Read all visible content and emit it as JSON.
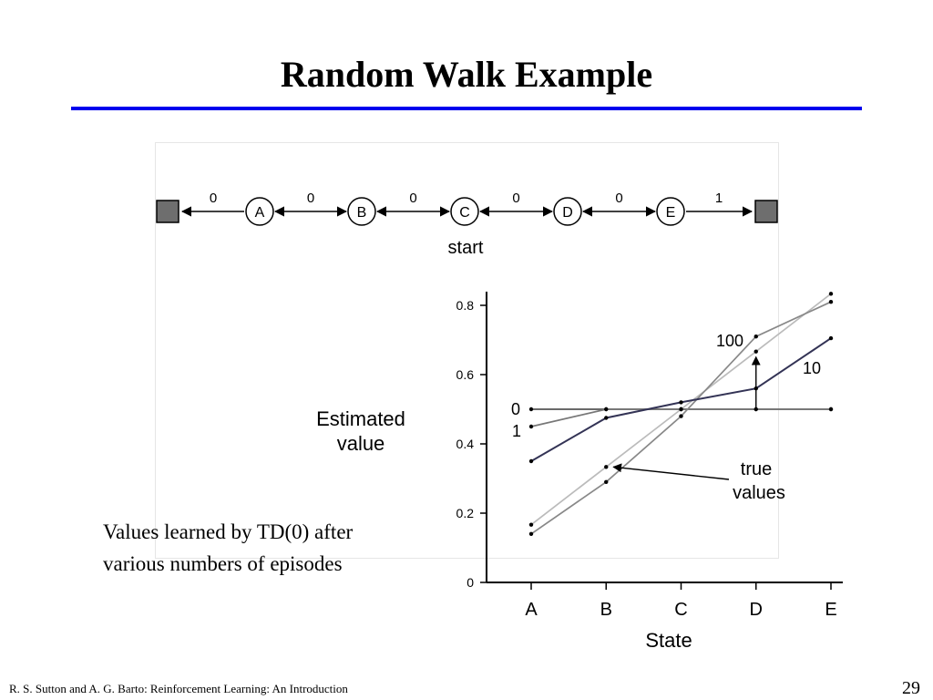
{
  "slide": {
    "title": "Random Walk Example",
    "caption_line1": "Values learned by TD(0) after",
    "caption_line2": "various numbers of episodes",
    "footer": "R. S. Sutton and A. G. Barto: Reinforcement Learning: An Introduction",
    "page_number": "29"
  },
  "random_walk": {
    "states": [
      "A",
      "B",
      "C",
      "D",
      "E"
    ],
    "rewards": [
      "0",
      "0",
      "0",
      "0",
      "0",
      "1"
    ],
    "start_label": "start"
  },
  "chart_data": {
    "type": "line",
    "xlabel": "State",
    "ylabel_line1": "Estimated",
    "ylabel_line2": "value",
    "categories": [
      "A",
      "B",
      "C",
      "D",
      "E"
    ],
    "ylim": [
      0,
      0.85
    ],
    "yticks": [
      0,
      0.2,
      0.4,
      0.6,
      0.8
    ],
    "ytick_labels": [
      "0",
      "0.2",
      "0.4",
      "0.6",
      "0.8"
    ],
    "series": [
      {
        "name": "0",
        "values": [
          0.5,
          0.5,
          0.5,
          0.5,
          0.5
        ],
        "color": "#555555"
      },
      {
        "name": "1",
        "values": [
          0.45,
          0.5,
          0.5,
          0.5,
          0.5
        ],
        "color": "#777777"
      },
      {
        "name": "10",
        "values": [
          0.35,
          0.475,
          0.52,
          0.56,
          0.705
        ],
        "color": "#333355"
      },
      {
        "name": "100",
        "values": [
          0.14,
          0.29,
          0.48,
          0.71,
          0.81
        ],
        "color": "#888888"
      },
      {
        "name": "true values",
        "values": [
          0.1667,
          0.3333,
          0.5,
          0.6667,
          0.8333
        ],
        "color": "#bbbbbb"
      }
    ],
    "annotations": {
      "true_values_line1": "true",
      "true_values_line2": "values"
    }
  }
}
